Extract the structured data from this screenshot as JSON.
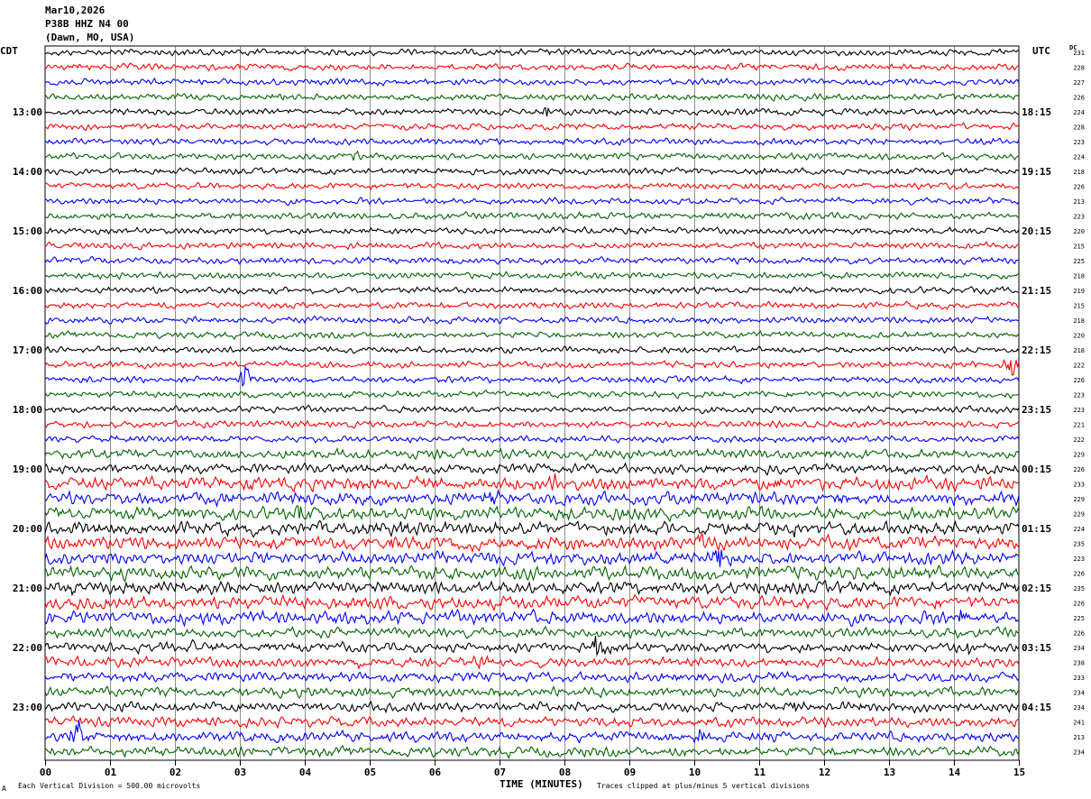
{
  "header": {
    "date": "Mar10,2026",
    "station": "P38B HHZ N4 00",
    "location": "(Dawn, MO, USA)"
  },
  "labels": {
    "left_tz": "CDT",
    "right_tz": "UTC",
    "dc": "DC"
  },
  "footer": {
    "scale": "Each Vertical Division =  500.00 microvolts",
    "clip": "Traces clipped at plus/minus 5 vertical divisions",
    "marker": "A"
  },
  "colors": {
    "trace_cycle": [
      "#000000",
      "#ff0000",
      "#0000ff",
      "#006400"
    ],
    "grid": "#000000",
    "background": "#ffffff"
  },
  "chart_data": {
    "type": "line",
    "title": "",
    "xlabel": "TIME (MINUTES)",
    "ylabel": "",
    "xlim": [
      0,
      15
    ],
    "x_ticks": [
      "00",
      "01",
      "02",
      "03",
      "04",
      "05",
      "06",
      "07",
      "08",
      "09",
      "10",
      "11",
      "12",
      "13",
      "14",
      "15"
    ],
    "grid": true,
    "rows_per_hour": 4,
    "trace_count": 48,
    "left_hour_labels": [
      "13:00",
      "14:00",
      "15:00",
      "16:00",
      "17:00",
      "18:00",
      "19:00",
      "20:00",
      "21:00",
      "22:00",
      "23:00"
    ],
    "right_hour_labels": [
      "18:15",
      "19:15",
      "20:15",
      "21:15",
      "22:15",
      "23:15",
      "00:15",
      "01:15",
      "02:15",
      "03:15",
      "04:15"
    ],
    "dc_offsets": [
      231,
      228,
      227,
      226,
      224,
      228,
      223,
      224,
      218,
      226,
      213,
      223,
      220,
      215,
      225,
      218,
      219,
      215,
      218,
      220,
      218,
      222,
      226,
      223,
      223,
      221,
      222,
      229,
      226,
      233,
      229,
      229,
      224,
      235,
      223,
      226,
      235,
      226,
      225,
      226,
      234,
      238,
      233,
      234,
      234,
      241,
      213,
      234
    ],
    "noise_amplitude": [
      2,
      2,
      2,
      2,
      2,
      2,
      2,
      2,
      2,
      2,
      2,
      2,
      2,
      2,
      2,
      2,
      2,
      2,
      2,
      2,
      2,
      2,
      2,
      2,
      2,
      2,
      2,
      3,
      3,
      4,
      4,
      4,
      4,
      4,
      4,
      4,
      4,
      4,
      4,
      3,
      3,
      3,
      3,
      3,
      3,
      3,
      3,
      3
    ],
    "events": [
      {
        "row": 4,
        "minute": 7.7,
        "amp": 7
      },
      {
        "row": 7,
        "minute": 4.8,
        "amp": 6
      },
      {
        "row": 11,
        "minute": 8.1,
        "amp": 6
      },
      {
        "row": 21,
        "minute": 14.9,
        "amp": 16
      },
      {
        "row": 22,
        "minute": 3.1,
        "amp": 20
      },
      {
        "row": 29,
        "minute": 3.2,
        "amp": 10
      },
      {
        "row": 29,
        "minute": 7.8,
        "amp": 8
      },
      {
        "row": 29,
        "minute": 11.3,
        "amp": 8
      },
      {
        "row": 30,
        "minute": 6.9,
        "amp": 7
      },
      {
        "row": 31,
        "minute": 3.9,
        "amp": 10
      },
      {
        "row": 32,
        "minute": 5.5,
        "amp": 9
      },
      {
        "row": 32,
        "minute": 11.5,
        "amp": 8
      },
      {
        "row": 33,
        "minute": 5.4,
        "amp": 12
      },
      {
        "row": 33,
        "minute": 10.1,
        "amp": 8
      },
      {
        "row": 34,
        "minute": 10.4,
        "amp": 12
      },
      {
        "row": 36,
        "minute": 0.3,
        "amp": 6
      },
      {
        "row": 38,
        "minute": 14.1,
        "amp": 8
      },
      {
        "row": 40,
        "minute": 2.3,
        "amp": 8
      },
      {
        "row": 40,
        "minute": 8.5,
        "amp": 12
      },
      {
        "row": 40,
        "minute": 14.2,
        "amp": 8
      },
      {
        "row": 41,
        "minute": 4.8,
        "amp": 10
      },
      {
        "row": 41,
        "minute": 6.7,
        "amp": 10
      },
      {
        "row": 43,
        "minute": 12.2,
        "amp": 7
      },
      {
        "row": 44,
        "minute": 11.6,
        "amp": 7
      },
      {
        "row": 46,
        "minute": 0.5,
        "amp": 20
      },
      {
        "row": 46,
        "minute": 10.1,
        "amp": 12
      }
    ]
  }
}
